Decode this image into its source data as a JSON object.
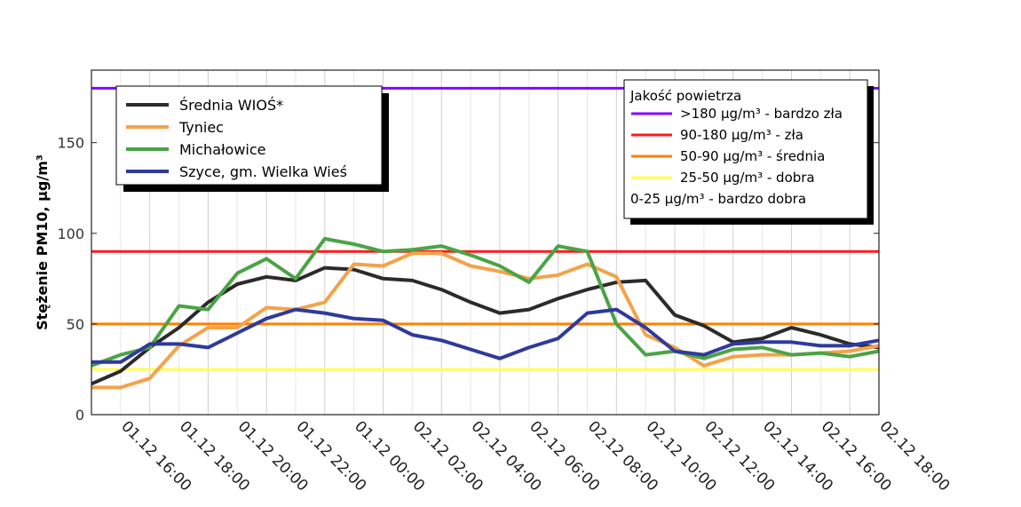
{
  "chart_data": {
    "type": "line",
    "ylabel": "Stężenie PM10, μg/m³",
    "ylim": [
      0,
      190
    ],
    "yticks": [
      0,
      50,
      100,
      150
    ],
    "x_labels": [
      "01.12 16:00",
      "01.12 18:00",
      "01.12 20:00",
      "01.12 22:00",
      "01.12 00:00",
      "02.12 02:00",
      "02.12 04:00",
      "02.12 06:00",
      "02.12 08:00",
      "02.12 10:00",
      "02.12 12:00",
      "02.12 14:00",
      "02.12 16:00",
      "02.12 18:00"
    ],
    "grid": true,
    "series": [
      {
        "name": "Średnia WIOŚ*",
        "color": "#2b2b2b",
        "values": [
          17,
          24,
          37,
          48,
          62,
          72,
          76,
          74,
          81,
          80,
          75,
          74,
          69,
          62,
          56,
          58,
          64,
          69,
          73,
          74,
          55,
          49,
          40,
          42,
          48,
          44,
          39,
          37
        ]
      },
      {
        "name": "Tyniec",
        "color": "#f4a24a",
        "values": [
          15,
          15,
          20,
          38,
          48,
          48,
          59,
          58,
          62,
          83,
          82,
          89,
          89,
          82,
          79,
          75,
          77,
          83,
          76,
          44,
          37,
          27,
          32,
          33,
          33,
          34,
          35,
          38
        ]
      },
      {
        "name": "Michałowice",
        "color": "#4ba345",
        "values": [
          27,
          33,
          37,
          60,
          58,
          78,
          86,
          75,
          97,
          94,
          90,
          91,
          93,
          88,
          82,
          73,
          93,
          90,
          50,
          33,
          35,
          31,
          36,
          37,
          33,
          34,
          32,
          35
        ]
      },
      {
        "name": "Szyce, gm. Wielka Wieś",
        "color": "#2e3a9c",
        "values": [
          29,
          29,
          39,
          39,
          37,
          45,
          53,
          58,
          56,
          53,
          52,
          44,
          41,
          36,
          31,
          37,
          42,
          56,
          58,
          48,
          35,
          33,
          39,
          40,
          40,
          38,
          38,
          41
        ]
      }
    ],
    "thresholds": [
      {
        "value": 180,
        "color": "#8a00ff"
      },
      {
        "value": 90,
        "color": "#ff1a1a"
      },
      {
        "value": 50,
        "color": "#ff8000"
      },
      {
        "value": 25,
        "color": "#ffff55"
      }
    ],
    "legend_placement": "top-left",
    "air_quality_legend": {
      "title": "Jakość powietrza",
      "placement": "top-right",
      "items": [
        {
          "label": ">180 μg/m³ - bardzo zła",
          "color": "#8a00ff"
        },
        {
          "label": "90-180 μg/m³ - zła",
          "color": "#ff1a1a"
        },
        {
          "label": "50-90 μg/m³ - średnia",
          "color": "#ff8000"
        },
        {
          "label": "25-50 μg/m³ - dobra",
          "color": "#ffff55"
        },
        {
          "label": "0-25 μg/m³ - bardzo dobra",
          "color": ""
        }
      ]
    }
  }
}
